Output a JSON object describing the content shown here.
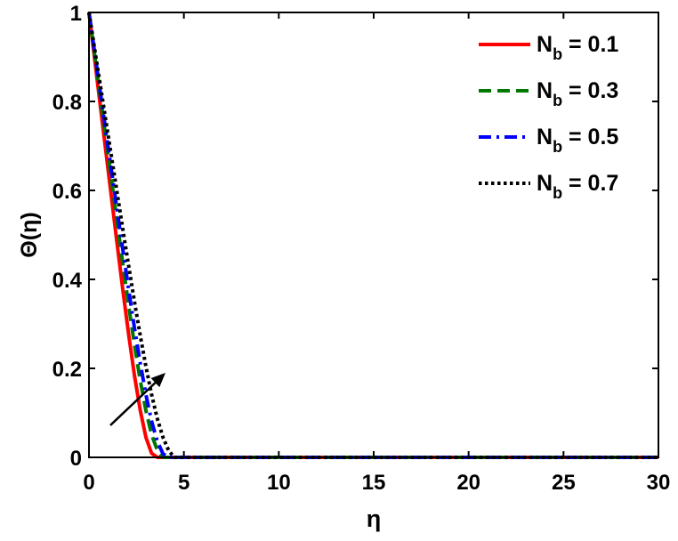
{
  "chart_data": {
    "type": "line",
    "title": "",
    "xlabel": "η",
    "ylabel": "Θ(η)",
    "xlim": [
      0,
      30
    ],
    "ylim": [
      0,
      1
    ],
    "xticks": [
      0,
      5,
      10,
      15,
      20,
      25,
      30
    ],
    "yticks": [
      0,
      0.2,
      0.4,
      0.6,
      0.8,
      1
    ],
    "xtick_labels": [
      "0",
      "5",
      "10",
      "15",
      "20",
      "25",
      "30"
    ],
    "ytick_labels": [
      "0",
      "0.2",
      "0.4",
      "0.6",
      "0.8",
      "1"
    ],
    "grid": false,
    "legend_position": "top-right",
    "annotation": "arrow indicating increasing N_b",
    "series": [
      {
        "name": "N_b = 0.1",
        "legend_main": "N",
        "legend_sub": "b",
        "legend_value": " = 0.1",
        "color": "#ff0000",
        "style": "solid",
        "x": [
          0,
          0.3,
          0.6,
          0.9,
          1.2,
          1.5,
          1.8,
          2.1,
          2.4,
          2.7,
          3.0,
          3.3,
          3.6,
          4,
          5,
          10,
          15,
          20,
          25,
          30
        ],
        "y": [
          1.0,
          0.895,
          0.789,
          0.684,
          0.579,
          0.474,
          0.371,
          0.273,
          0.183,
          0.106,
          0.045,
          0.009,
          0,
          0,
          0,
          0,
          0,
          0,
          0,
          0
        ]
      },
      {
        "name": "N_b = 0.3",
        "legend_main": "N",
        "legend_sub": "b",
        "legend_value": " = 0.3",
        "color": "#007700",
        "style": "dashed",
        "x": [
          0,
          0.3,
          0.6,
          0.9,
          1.2,
          1.5,
          1.8,
          2.1,
          2.4,
          2.7,
          3.0,
          3.3,
          3.6,
          3.9,
          4.2,
          5,
          10,
          15,
          20,
          25,
          30
        ],
        "y": [
          1.0,
          0.905,
          0.81,
          0.714,
          0.619,
          0.524,
          0.43,
          0.338,
          0.252,
          0.173,
          0.105,
          0.051,
          0.016,
          0,
          0,
          0,
          0,
          0,
          0,
          0,
          0
        ]
      },
      {
        "name": "N_b = 0.5",
        "legend_main": "N",
        "legend_sub": "b",
        "legend_value": " = 0.5",
        "color": "#0000ff",
        "style": "dashdot",
        "x": [
          0,
          0.3,
          0.6,
          0.9,
          1.2,
          1.5,
          1.8,
          2.1,
          2.4,
          2.7,
          3.0,
          3.3,
          3.6,
          3.9,
          4.2,
          5,
          10,
          15,
          20,
          25,
          30
        ],
        "y": [
          1.0,
          0.91,
          0.82,
          0.73,
          0.64,
          0.55,
          0.462,
          0.374,
          0.29,
          0.212,
          0.141,
          0.081,
          0.036,
          0.008,
          0,
          0,
          0,
          0,
          0,
          0,
          0
        ]
      },
      {
        "name": "N_b = 0.7",
        "legend_main": "N",
        "legend_sub": "b",
        "legend_value": " = 0.7",
        "color": "#000000",
        "style": "dotted",
        "x": [
          0,
          0.3,
          0.6,
          0.9,
          1.2,
          1.5,
          1.8,
          2.1,
          2.4,
          2.7,
          3.0,
          3.3,
          3.6,
          3.9,
          4.2,
          4.5,
          5,
          10,
          15,
          20,
          25,
          30
        ],
        "y": [
          1.0,
          0.918,
          0.836,
          0.754,
          0.672,
          0.59,
          0.508,
          0.428,
          0.349,
          0.274,
          0.204,
          0.141,
          0.087,
          0.045,
          0.015,
          0,
          0,
          0,
          0,
          0,
          0,
          0
        ]
      }
    ]
  }
}
